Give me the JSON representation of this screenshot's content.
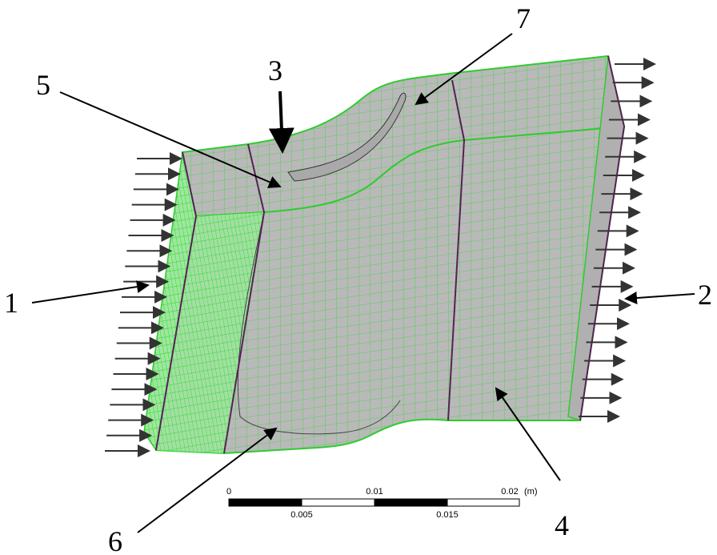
{
  "callouts": [
    {
      "label": "1"
    },
    {
      "label": "2"
    },
    {
      "label": "3"
    },
    {
      "label": "4"
    },
    {
      "label": "5"
    },
    {
      "label": "6"
    },
    {
      "label": "7"
    }
  ],
  "scale_bar": {
    "top_labels": [
      "0",
      "0.01",
      "0.02"
    ],
    "unit": "(m)",
    "bottom_labels": [
      "0.005",
      "0.015"
    ]
  }
}
